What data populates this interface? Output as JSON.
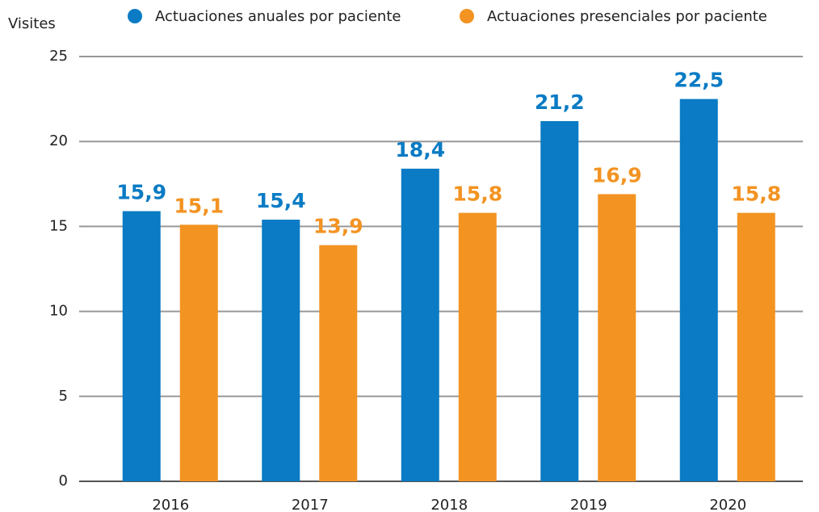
{
  "chart_data": {
    "type": "bar",
    "y_label": "Visites",
    "categories": [
      "2016",
      "2017",
      "2018",
      "2019",
      "2020"
    ],
    "series": [
      {
        "name": "Actuaciones anuales por paciente",
        "color": "#0a7bc4",
        "values": [
          15.9,
          15.4,
          18.4,
          21.2,
          22.5
        ],
        "value_labels": [
          "15,9",
          "15,4",
          "18,4",
          "21,2",
          "22,5"
        ]
      },
      {
        "name": "Actuaciones presenciales por paciente",
        "color": "#f39322",
        "values": [
          15.1,
          13.9,
          15.8,
          16.9,
          15.8
        ],
        "value_labels": [
          "15,1",
          "13,9",
          "15,8",
          "16,9",
          "15,8"
        ]
      }
    ],
    "ylim": [
      0,
      25
    ],
    "yticks": [
      0,
      5,
      10,
      15,
      20,
      25
    ],
    "grid": true,
    "legend": "top"
  }
}
